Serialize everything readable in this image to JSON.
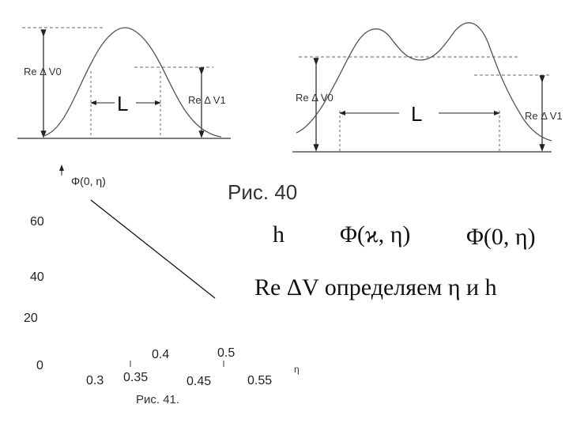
{
  "colors": {
    "ink": "#222222",
    "dash": "#666666"
  },
  "figure40": {
    "left_re_v0": "Re Δ V0",
    "left_L": "L",
    "left_re_v1": "Re Δ V1",
    "right_re_v0": "Re Δ V0",
    "right_L": "L",
    "right_re_v1": "Re Δ V1",
    "caption": "Рис. 40"
  },
  "figure41": {
    "ylabel": "Φ(0, η)",
    "xlabel": "η",
    "caption": "Рис. 41.",
    "yticks": [
      "60",
      "40",
      "20",
      "0"
    ],
    "xticks_upper": [
      "0.4",
      "0.5"
    ],
    "xticks_lower": [
      "0.3",
      "0.35",
      "0.45",
      "0.55"
    ]
  },
  "text": {
    "h_symbol": "h",
    "phi_kappa_eta": "Φ(ϰ, η)",
    "phi_zero_eta": "Φ(0, η)",
    "statement": "Re ΔV определяем η и h"
  }
}
